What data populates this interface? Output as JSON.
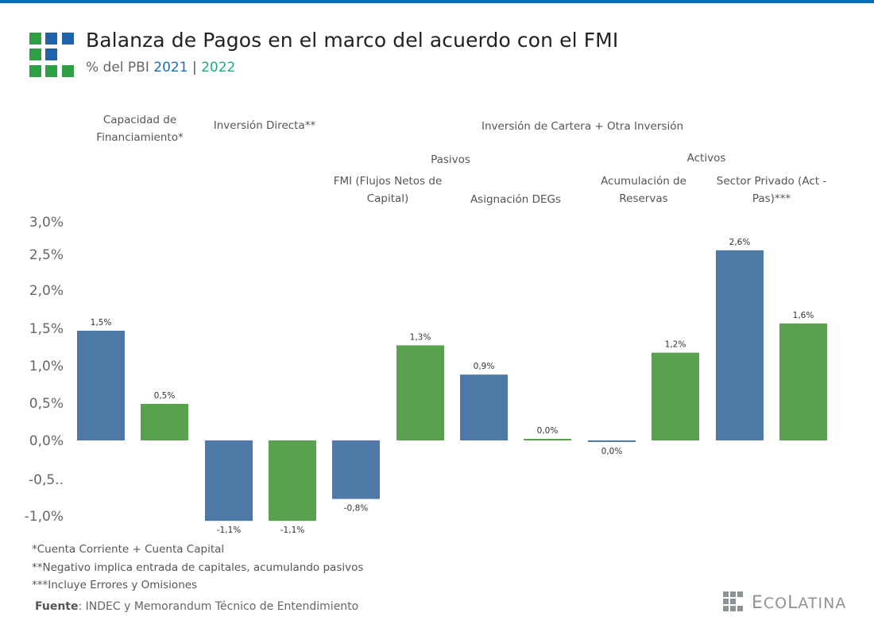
{
  "header": {
    "title": "Balanza de Pagos en el marco del acuerdo con el FMI",
    "subtitle_prefix": "% del PBI",
    "subtitle_year1": "2021",
    "subtitle_separator": "|",
    "subtitle_year2": "2022"
  },
  "colors": {
    "top_bar": "#0070BA",
    "series_2021": "#4E78A5",
    "series_2022": "#59A14F",
    "logo_green": "#2EA043",
    "logo_blue": "#1F64AB"
  },
  "category_headers": {
    "capacidad": [
      "Capacidad de",
      "Financiamiento*"
    ],
    "inversion_directa": "Inversión Directa**",
    "cartera": "Inversión de Cartera + Otra Inversión",
    "pasivos": "Pasivos",
    "activos": "Activos",
    "fmi": [
      "FMI (Flujos Netos de",
      "Capital)"
    ],
    "degs": "Asignación DEGs",
    "reservas": [
      "Acumulación de",
      "Reservas"
    ],
    "sector_privado": [
      "Sector Privado (Act -",
      "Pas)***"
    ]
  },
  "chart_data": {
    "type": "bar",
    "title": "Balanza de Pagos en el marco del acuerdo con el FMI",
    "subtitle": "% del PBI 2021 | 2022",
    "xlabel": "",
    "ylabel": "% del PBI",
    "ylim": [
      -1.0,
      3.0
    ],
    "grid": false,
    "legend": "subtitle (color-coded years)",
    "y_ticks": [
      "3,0%",
      "2,5%",
      "2,0%",
      "1,5%",
      "1,0%",
      "0,5%",
      "0,0%",
      "-0,5..",
      "-1,0%"
    ],
    "y_tick_values": [
      3.0,
      2.5,
      2.0,
      1.5,
      1.0,
      0.5,
      0.0,
      -0.5,
      -1.0
    ],
    "categories": [
      "Capacidad de Financiamiento*",
      "Inversión Directa**",
      "FMI (Flujos Netos de Capital)",
      "Asignación DEGs",
      "Acumulación de Reservas",
      "Sector Privado (Act - Pas)***"
    ],
    "series": [
      {
        "name": "2021",
        "values": [
          1.5,
          -1.1,
          -0.8,
          0.9,
          0.0,
          2.6
        ],
        "labels": [
          "1,5%",
          "-1,1%",
          "-0,8%",
          "0,9%",
          "0,0%",
          "2,6%"
        ]
      },
      {
        "name": "2022",
        "values": [
          0.5,
          -1.1,
          1.3,
          0.0,
          1.2,
          1.6
        ],
        "labels": [
          "0,5%",
          "-1,1%",
          "1,3%",
          "0,0%",
          "1,2%",
          "1,6%"
        ]
      }
    ]
  },
  "footnotes": [
    "*Cuenta Corriente + Cuenta Capital",
    "**Negativo implica entrada de capitales, acumulando pasivos",
    "***Incluye Errores y Omisiones"
  ],
  "source": {
    "label": "Fuente",
    "text": ": INDEC y Memorandum Técnico de Entendimiento"
  },
  "brand": {
    "name_initial_1": "E",
    "name_part_1": "CO",
    "name_initial_2": "L",
    "name_part_2": "ATINA"
  }
}
